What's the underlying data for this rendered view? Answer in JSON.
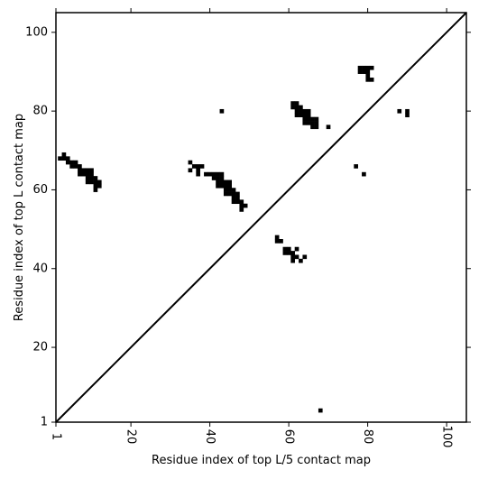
{
  "chart_data": {
    "type": "heatmap",
    "title": "",
    "xlabel": "Residue index of top L/5 contact map",
    "ylabel": "Residue index of top L contact map",
    "xlim": [
      1,
      105
    ],
    "ylim": [
      1,
      105
    ],
    "x_ticks": [
      "1",
      "20",
      "40",
      "60",
      "80",
      "100"
    ],
    "y_ticks": [
      "1",
      "20",
      "40",
      "60",
      "80",
      "100"
    ],
    "diagonal": true,
    "grid": false,
    "cell_color": "#000000",
    "contacts": [
      [
        2,
        68
      ],
      [
        3,
        68
      ],
      [
        3,
        69
      ],
      [
        4,
        67
      ],
      [
        4,
        68
      ],
      [
        5,
        66
      ],
      [
        5,
        67
      ],
      [
        6,
        66
      ],
      [
        6,
        67
      ],
      [
        7,
        64
      ],
      [
        7,
        65
      ],
      [
        7,
        66
      ],
      [
        8,
        64
      ],
      [
        8,
        65
      ],
      [
        9,
        62
      ],
      [
        9,
        63
      ],
      [
        9,
        64
      ],
      [
        9,
        65
      ],
      [
        10,
        62
      ],
      [
        10,
        63
      ],
      [
        10,
        64
      ],
      [
        10,
        65
      ],
      [
        11,
        60
      ],
      [
        11,
        61
      ],
      [
        11,
        62
      ],
      [
        11,
        63
      ],
      [
        12,
        61
      ],
      [
        12,
        62
      ],
      [
        35,
        65
      ],
      [
        35,
        67
      ],
      [
        36,
        66
      ],
      [
        37,
        64
      ],
      [
        37,
        65
      ],
      [
        37,
        66
      ],
      [
        38,
        66
      ],
      [
        39,
        64
      ],
      [
        40,
        64
      ],
      [
        41,
        63
      ],
      [
        41,
        64
      ],
      [
        42,
        61
      ],
      [
        42,
        62
      ],
      [
        42,
        63
      ],
      [
        42,
        64
      ],
      [
        43,
        61
      ],
      [
        43,
        62
      ],
      [
        43,
        63
      ],
      [
        43,
        64
      ],
      [
        44,
        59
      ],
      [
        44,
        60
      ],
      [
        44,
        61
      ],
      [
        44,
        62
      ],
      [
        45,
        59
      ],
      [
        45,
        60
      ],
      [
        45,
        61
      ],
      [
        45,
        62
      ],
      [
        46,
        57
      ],
      [
        46,
        58
      ],
      [
        46,
        59
      ],
      [
        46,
        60
      ],
      [
        47,
        57
      ],
      [
        47,
        58
      ],
      [
        47,
        59
      ],
      [
        48,
        55
      ],
      [
        48,
        56
      ],
      [
        48,
        57
      ],
      [
        49,
        56
      ],
      [
        43,
        80
      ],
      [
        57,
        47
      ],
      [
        57,
        48
      ],
      [
        58,
        47
      ],
      [
        59,
        44
      ],
      [
        59,
        45
      ],
      [
        60,
        44
      ],
      [
        60,
        45
      ],
      [
        61,
        42
      ],
      [
        61,
        43
      ],
      [
        61,
        44
      ],
      [
        62,
        43
      ],
      [
        62,
        45
      ],
      [
        63,
        42
      ],
      [
        64,
        43
      ],
      [
        61,
        81
      ],
      [
        61,
        82
      ],
      [
        62,
        79
      ],
      [
        62,
        80
      ],
      [
        62,
        81
      ],
      [
        62,
        82
      ],
      [
        63,
        79
      ],
      [
        63,
        80
      ],
      [
        63,
        81
      ],
      [
        64,
        77
      ],
      [
        64,
        78
      ],
      [
        64,
        79
      ],
      [
        64,
        80
      ],
      [
        65,
        77
      ],
      [
        65,
        78
      ],
      [
        65,
        79
      ],
      [
        65,
        80
      ],
      [
        66,
        76
      ],
      [
        66,
        77
      ],
      [
        66,
        78
      ],
      [
        67,
        76
      ],
      [
        67,
        77
      ],
      [
        67,
        78
      ],
      [
        70,
        76
      ],
      [
        77,
        66
      ],
      [
        79,
        64
      ],
      [
        78,
        90
      ],
      [
        78,
        91
      ],
      [
        79,
        90
      ],
      [
        79,
        91
      ],
      [
        80,
        88
      ],
      [
        80,
        89
      ],
      [
        80,
        90
      ],
      [
        80,
        91
      ],
      [
        81,
        88
      ],
      [
        81,
        91
      ],
      [
        88,
        80
      ],
      [
        90,
        79
      ],
      [
        90,
        80
      ],
      [
        68,
        4
      ]
    ]
  }
}
